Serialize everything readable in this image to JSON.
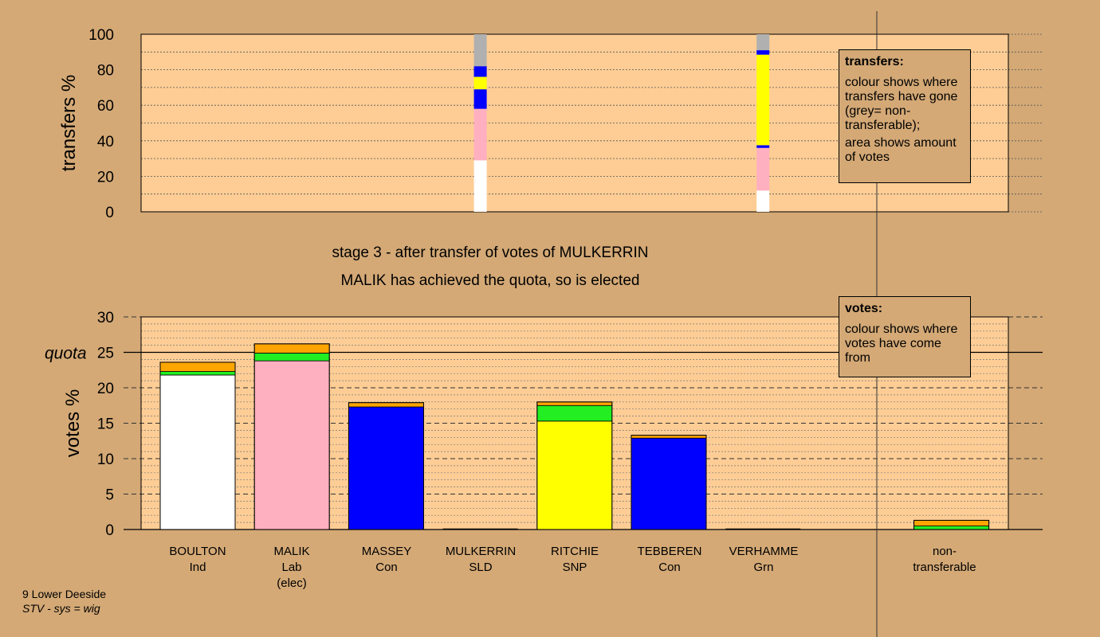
{
  "captions": {
    "stage_line": "stage 3 - after transfer of votes of MULKERRIN",
    "elected_line": "MALIK has achieved the quota, so is elected"
  },
  "footer": {
    "ward": "9 Lower Deeside",
    "system": "STV - sys = wig"
  },
  "notes": {
    "transfers": {
      "title": "transfers:",
      "line1": "colour shows where transfers have gone (grey= non-transferable);",
      "line2": "area shows amount of votes"
    },
    "votes": {
      "title": "votes:",
      "line1": "colour shows where votes have come from"
    }
  },
  "colors": {
    "background": "#d4a976",
    "plot_area": "#fdcd95",
    "Ind": "#ffffff",
    "Lab": "#ffb0c0",
    "Con": "#0000ff",
    "SLD": "#ffa500",
    "SNP": "#ffff00",
    "Grn": "#22ee22",
    "non_transferable": "#b0b0b0"
  },
  "chart_data": [
    {
      "type": "bar",
      "stacked": true,
      "ylabel": "transfers %",
      "ylim": [
        0,
        100
      ],
      "yticks": [
        0,
        20,
        40,
        60,
        80,
        100
      ],
      "grid": true,
      "columns": [
        {
          "position": 3.5,
          "segments": [
            {
              "party": "Ind",
              "value": 29
            },
            {
              "party": "Lab",
              "value": 29
            },
            {
              "party": "Con",
              "value": 11
            },
            {
              "party": "SNP",
              "value": 7
            },
            {
              "party": "Con",
              "value": 6
            },
            {
              "party": "non_transferable",
              "value": 18
            }
          ]
        },
        {
          "position": 6.5,
          "segments": [
            {
              "party": "Ind",
              "value": 12
            },
            {
              "party": "Lab",
              "value": 24
            },
            {
              "party": "Con",
              "value": 1.5
            },
            {
              "party": "SNP",
              "value": 51
            },
            {
              "party": "Con",
              "value": 2.5
            },
            {
              "party": "non_transferable",
              "value": 9
            }
          ]
        }
      ]
    },
    {
      "type": "bar",
      "stacked": true,
      "ylabel": "votes %",
      "ylim": [
        0,
        30
      ],
      "yticks": [
        0,
        5,
        10,
        15,
        20,
        25,
        30
      ],
      "quota": {
        "label": "quota",
        "value": 25
      },
      "grid": true,
      "categories": [
        {
          "name": "BOULTON",
          "party": "Ind",
          "note": ""
        },
        {
          "name": "MALIK",
          "party": "Lab",
          "note": "(elec)"
        },
        {
          "name": "MASSEY",
          "party": "Con",
          "note": ""
        },
        {
          "name": "MULKERRIN",
          "party": "SLD",
          "note": ""
        },
        {
          "name": "RITCHIE",
          "party": "SNP",
          "note": ""
        },
        {
          "name": "TEBBEREN",
          "party": "Con",
          "note": ""
        },
        {
          "name": "VERHAMME",
          "party": "Grn",
          "note": ""
        }
      ],
      "nontransferable_label": "non-transferable",
      "stacks": [
        [
          {
            "party": "Ind",
            "value": 21.8
          },
          {
            "party": "Grn",
            "value": 0.5
          },
          {
            "party": "SLD",
            "value": 1.3
          }
        ],
        [
          {
            "party": "Lab",
            "value": 23.8
          },
          {
            "party": "Grn",
            "value": 1.1
          },
          {
            "party": "SLD",
            "value": 1.3
          }
        ],
        [
          {
            "party": "Con",
            "value": 17.3
          },
          {
            "party": "SLD",
            "value": 0.6
          }
        ],
        [],
        [
          {
            "party": "SNP",
            "value": 15.3
          },
          {
            "party": "Grn",
            "value": 2.2
          },
          {
            "party": "SLD",
            "value": 0.5
          }
        ],
        [
          {
            "party": "Con",
            "value": 12.9
          },
          {
            "party": "SLD",
            "value": 0.4
          }
        ],
        [],
        [
          {
            "party": "Grn",
            "value": 0.5
          },
          {
            "party": "SLD",
            "value": 0.8
          }
        ]
      ]
    }
  ]
}
